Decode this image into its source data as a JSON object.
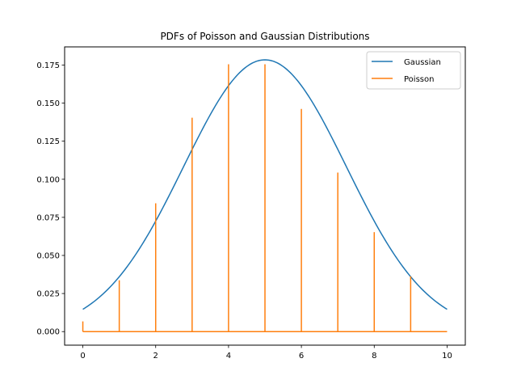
{
  "chart_data": {
    "type": "line",
    "title": "PDFs of Poisson and Gaussian Distributions",
    "xlabel": "",
    "ylabel": "",
    "xlim": [
      -0.5,
      10.5
    ],
    "ylim": [
      -0.0089,
      0.1869
    ],
    "x_ticks": [
      0,
      2,
      4,
      6,
      8,
      10
    ],
    "x_tick_labels": [
      "0",
      "2",
      "4",
      "6",
      "8",
      "10"
    ],
    "y_ticks": [
      0.0,
      0.025,
      0.05,
      0.075,
      0.1,
      0.125,
      0.15,
      0.175
    ],
    "y_tick_labels": [
      "0.000",
      "0.025",
      "0.050",
      "0.075",
      "0.100",
      "0.125",
      "0.150",
      "0.175"
    ],
    "grid": false,
    "legend_position": "top-right",
    "series": [
      {
        "name": "Gaussian",
        "color": "#1f77b4",
        "kind": "curve",
        "x": [
          0,
          0.5,
          1,
          1.5,
          2,
          2.5,
          3,
          3.5,
          4,
          4.5,
          5,
          5.5,
          6,
          6.5,
          7,
          7.5,
          8,
          8.5,
          9,
          9.5,
          10
        ],
        "y": [
          0.0146,
          0.0234,
          0.0347,
          0.0495,
          0.0664,
          0.0849,
          0.1042,
          0.1221,
          0.16,
          0.1731,
          0.1784,
          0.1731,
          0.16,
          0.1221,
          0.1042,
          0.0849,
          0.0664,
          0.0495,
          0.0347,
          0.0234,
          0.0146
        ]
      },
      {
        "name": "Poisson",
        "color": "#ff7f0e",
        "kind": "spikes",
        "x": [
          0,
          1,
          2,
          3,
          4,
          5,
          6,
          7,
          8,
          9,
          10
        ],
        "y": [
          0.0067,
          0.0337,
          0.0842,
          0.1404,
          0.1755,
          0.1755,
          0.1462,
          0.1044,
          0.0653,
          0.0363,
          0.0
        ]
      }
    ]
  }
}
